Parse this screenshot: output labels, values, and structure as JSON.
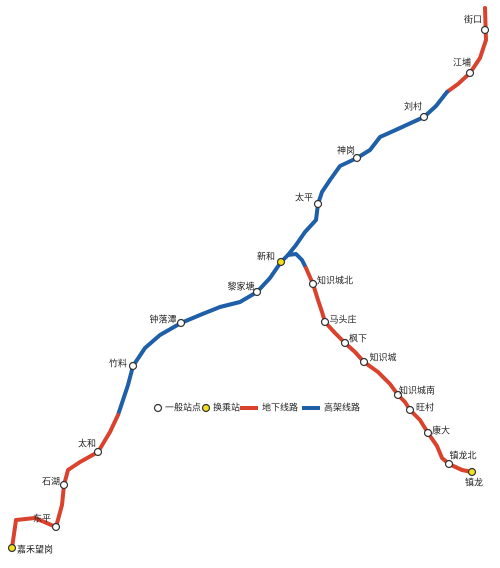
{
  "stations": [
    "街口",
    "江埔",
    "刘村",
    "神岗",
    "太平",
    "新和",
    "黎家塘",
    "钟落潭",
    "竹料",
    "太和",
    "石湖",
    "东平",
    "嘉禾望岗",
    "知识城北",
    "马头庄",
    "枫下",
    "知识城",
    "知识城南",
    "旺村",
    "康大",
    "镇龙北",
    "镇龙"
  ],
  "legend": [
    "一般站点",
    "换乘站",
    "地下线路",
    "高架线路"
  ]
}
